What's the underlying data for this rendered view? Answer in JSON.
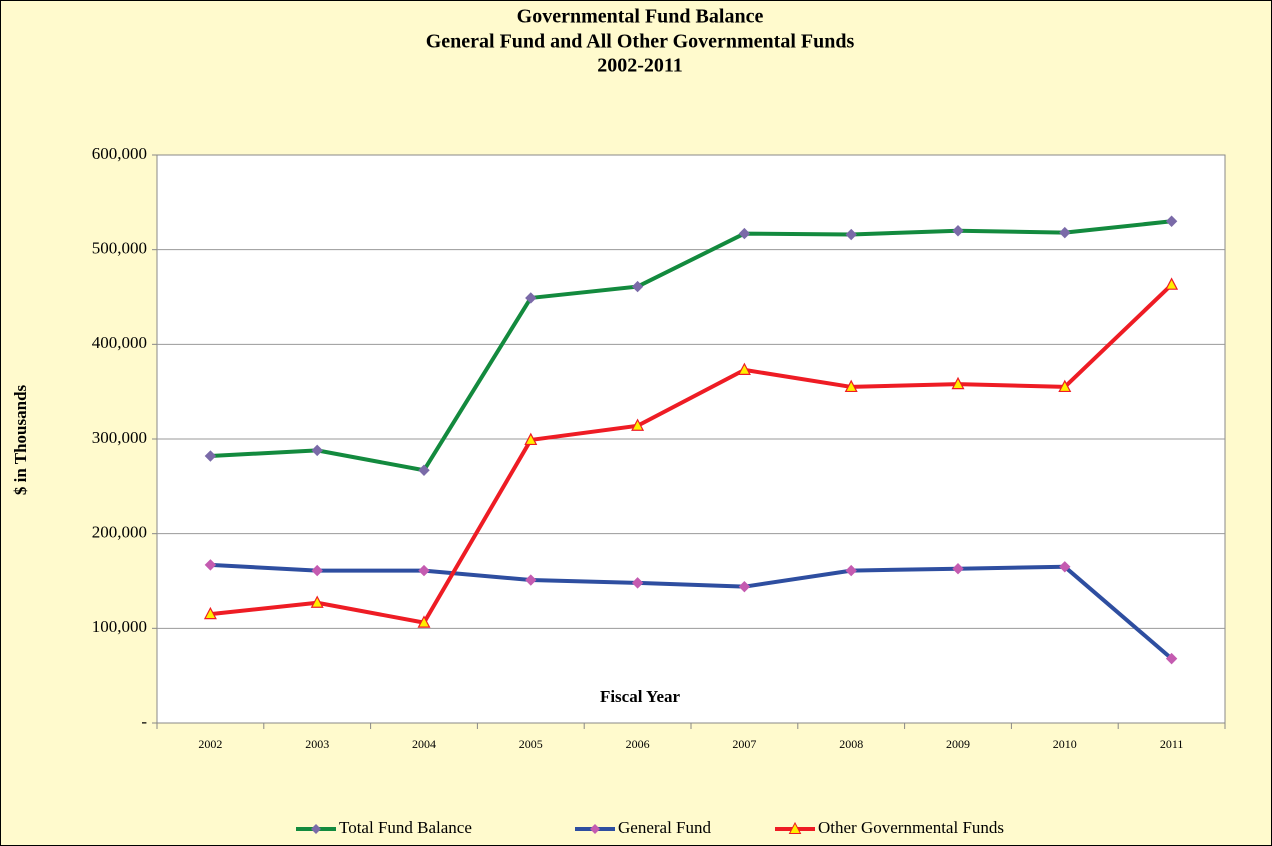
{
  "chart_data": {
    "type": "line",
    "title": [
      "Governmental Fund Balance",
      "General Fund and All Other Governmental Funds",
      "2002-2011"
    ],
    "x_label": "Fiscal Year",
    "y_label": "$ in Thousands",
    "categories": [
      "2002",
      "2003",
      "2004",
      "2005",
      "2006",
      "2007",
      "2008",
      "2009",
      "2010",
      "2011"
    ],
    "series": [
      {
        "name": "Total Fund Balance",
        "color": "#138a3e",
        "marker": "diamond",
        "marker_color": "#7a6aa8",
        "values": [
          282000,
          288000,
          267000,
          449000,
          461000,
          517000,
          516000,
          520000,
          518000,
          530000
        ]
      },
      {
        "name": "General Fund",
        "color": "#2e4ea0",
        "marker": "diamond",
        "marker_color": "#c45bb0",
        "values": [
          167000,
          161000,
          161000,
          151000,
          148000,
          144000,
          161000,
          163000,
          165000,
          68000
        ]
      },
      {
        "name": "Other Governmental Funds",
        "color": "#ee1c24",
        "marker": "triangle",
        "marker_color": "#ffee00",
        "values": [
          115000,
          127000,
          106000,
          299000,
          314000,
          373000,
          355000,
          358000,
          355000,
          463000
        ]
      }
    ],
    "ylim": [
      0,
      600000
    ],
    "yticks": [
      {
        "value": 0,
        "label": "-"
      },
      {
        "value": 100000,
        "label": "100,000"
      },
      {
        "value": 200000,
        "label": "200,000"
      },
      {
        "value": 300000,
        "label": "300,000"
      },
      {
        "value": 400000,
        "label": "400,000"
      },
      {
        "value": 500000,
        "label": "500,000"
      },
      {
        "value": 600000,
        "label": "600,000"
      }
    ],
    "grid": true,
    "legend": "bottom"
  }
}
